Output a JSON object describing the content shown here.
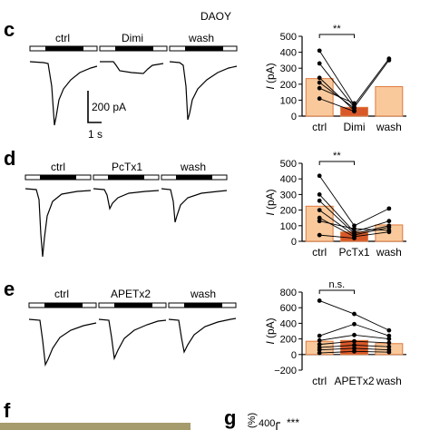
{
  "cell_line": "DAOY",
  "scale_bar": {
    "current": "200 pA",
    "time": "1 s"
  },
  "colors": {
    "ctrl": "#f9c99c",
    "drug": "#d8582a",
    "wash": "#f9c99c",
    "bar_edge": "#e07a3c",
    "line": "#000000",
    "photo": "#a59b6c"
  },
  "panels": [
    {
      "label": "c",
      "conditions": [
        "ctrl",
        "Dimi",
        "wash"
      ],
      "signif": "**",
      "signif_pair": [
        0,
        1
      ],
      "chart_data": {
        "type": "bar",
        "categories": [
          "ctrl",
          "Dimi",
          "wash"
        ],
        "values": [
          235,
          55,
          185
        ],
        "ylabel": "I (pA)",
        "ylim": [
          0,
          500
        ],
        "yticks": [
          0,
          100,
          200,
          300,
          400,
          500
        ],
        "points": [
          [
            410,
            330,
            240,
            210,
            175,
            110
          ],
          [
            70,
            55,
            35,
            50,
            80,
            30
          ],
          [
            360,
            350,
            null,
            null,
            null,
            null
          ]
        ]
      }
    },
    {
      "label": "d",
      "conditions": [
        "ctrl",
        "PcTx1",
        "wash"
      ],
      "signif": "**",
      "signif_pair": [
        0,
        1
      ],
      "chart_data": {
        "type": "bar",
        "categories": [
          "ctrl",
          "PcTx1",
          "wash"
        ],
        "values": [
          225,
          60,
          105
        ],
        "ylabel": "I (pA)",
        "ylim": [
          0,
          500
        ],
        "yticks": [
          0,
          100,
          200,
          300,
          400,
          500
        ],
        "points": [
          [
            420,
            300,
            260,
            200,
            150,
            130,
            40
          ],
          [
            100,
            60,
            50,
            40,
            30,
            80,
            20
          ],
          [
            210,
            130,
            100,
            90,
            60,
            70,
            null
          ]
        ]
      }
    },
    {
      "label": "e",
      "conditions": [
        "ctrl",
        "APETx2",
        "wash"
      ],
      "signif": "n.s.",
      "signif_pair": [
        0,
        1
      ],
      "chart_data": {
        "type": "bar",
        "categories": [
          "ctrl",
          "APETx2",
          "wash"
        ],
        "values": [
          170,
          180,
          140
        ],
        "ylabel": "I (pA)",
        "ylim": [
          -200,
          800
        ],
        "yticks": [
          -200,
          0,
          200,
          400,
          600,
          800
        ],
        "points": [
          [
            690,
            240,
            180,
            130,
            90,
            60,
            20
          ],
          [
            520,
            390,
            250,
            170,
            120,
            80,
            40
          ],
          [
            310,
            240,
            200,
            150,
            100,
            60,
            30
          ]
        ]
      }
    }
  ],
  "panel_f": {
    "label": "f"
  },
  "panel_g": {
    "label": "g",
    "ylabel": "(%)",
    "ytick": "400",
    "signif": "***"
  }
}
